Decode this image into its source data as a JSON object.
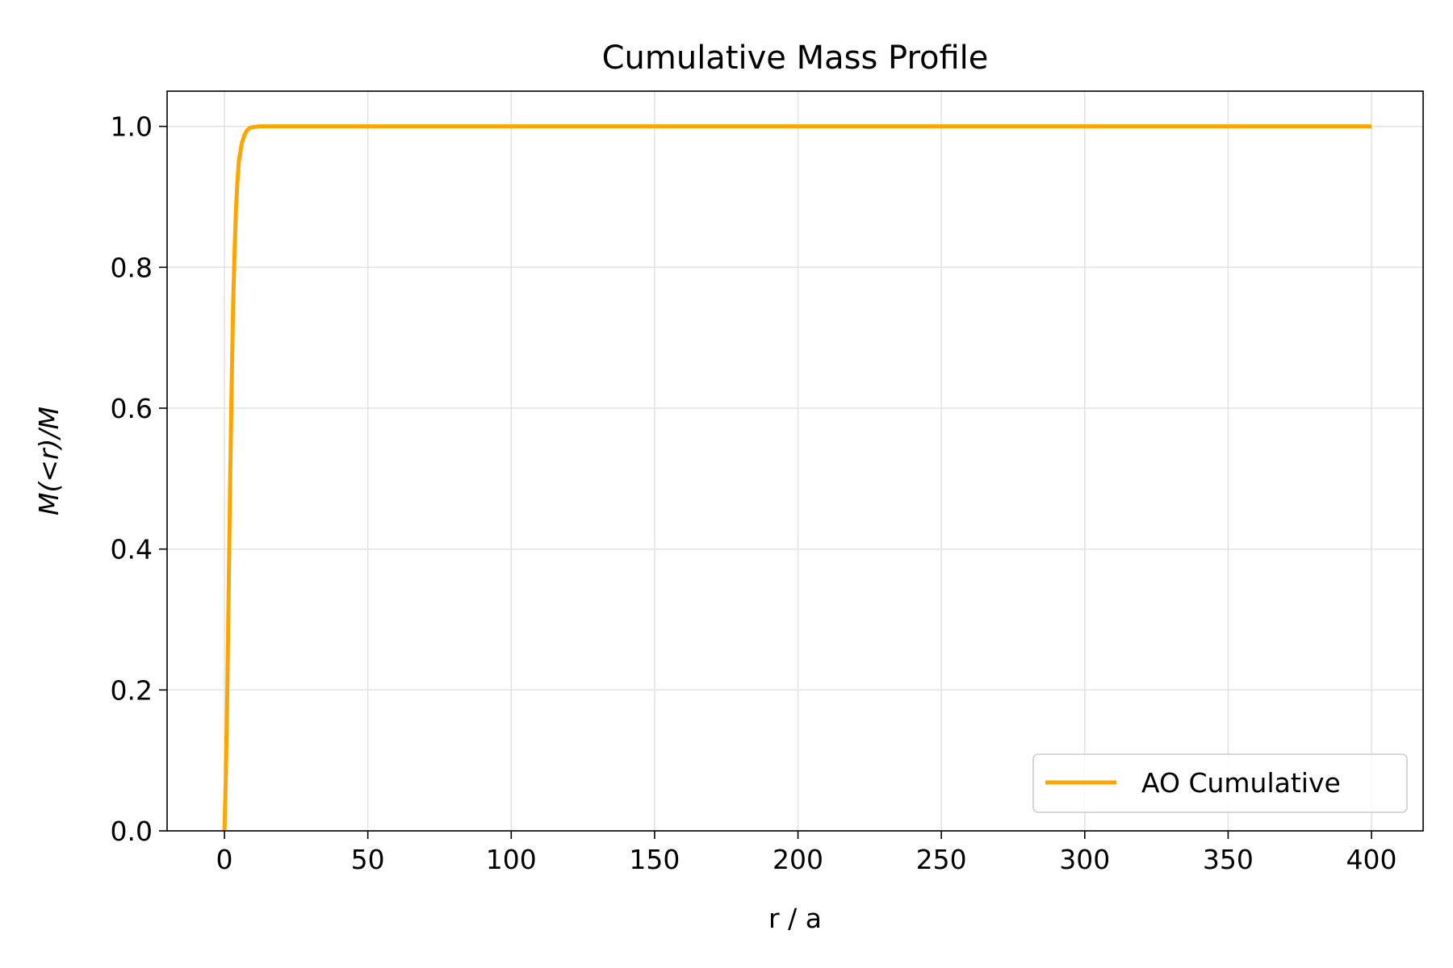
{
  "chart_data": {
    "type": "line",
    "title": "Cumulative Mass Profile",
    "xlabel": "r / a",
    "ylabel": "M(<r)/M",
    "xlim": [
      -20,
      418
    ],
    "ylim": [
      0,
      1.05
    ],
    "xticks": [
      0,
      50,
      100,
      150,
      200,
      250,
      300,
      350,
      400
    ],
    "yticks": [
      0.0,
      0.2,
      0.4,
      0.6,
      0.8,
      1.0
    ],
    "xtick_labels": [
      "0",
      "50",
      "100",
      "150",
      "200",
      "250",
      "300",
      "350",
      "400"
    ],
    "ytick_labels": [
      "0.0",
      "0.2",
      "0.4",
      "0.6",
      "0.8",
      "1.0"
    ],
    "grid": true,
    "legend_position": "lower-right",
    "series": [
      {
        "name": "AO Cumulative",
        "color": "#FFA500",
        "x": [
          0,
          0.5,
          1,
          1.5,
          2,
          2.5,
          3,
          3.5,
          4,
          4.5,
          5,
          6,
          7,
          8,
          9,
          10,
          12,
          15,
          20,
          50,
          100,
          200,
          300,
          400
        ],
        "y": [
          0,
          0.08,
          0.2,
          0.35,
          0.5,
          0.63,
          0.74,
          0.82,
          0.88,
          0.92,
          0.95,
          0.975,
          0.988,
          0.995,
          0.998,
          0.999,
          1.0,
          1.0,
          1.0,
          1.0,
          1.0,
          1.0,
          1.0,
          1.0
        ]
      }
    ]
  }
}
